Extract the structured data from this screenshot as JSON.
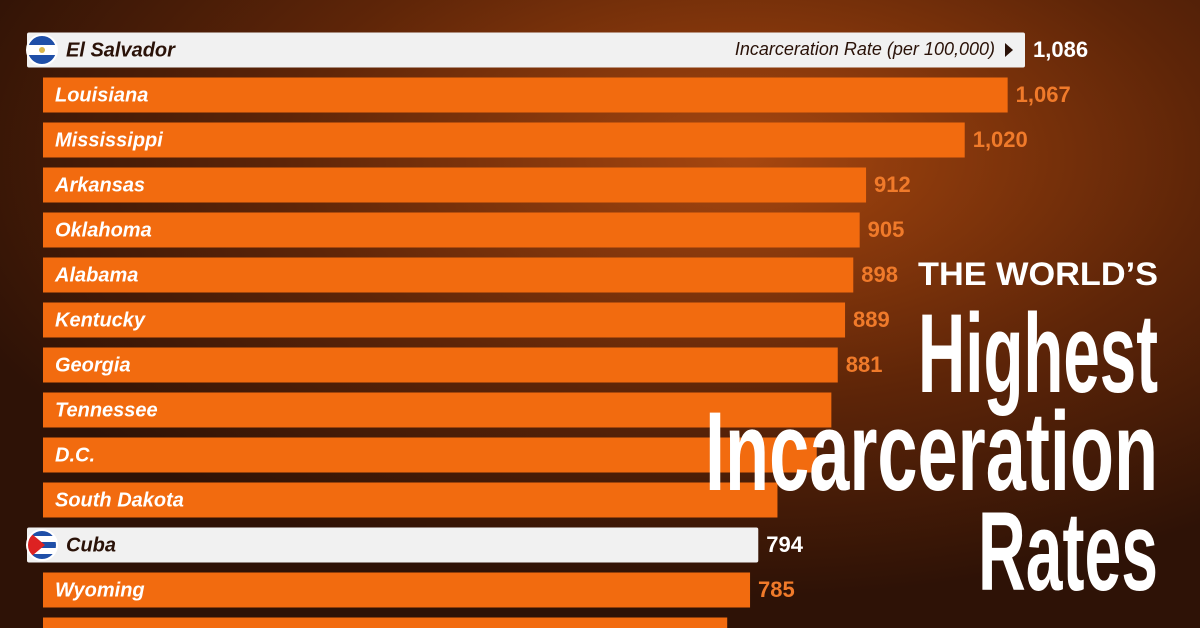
{
  "chart_data": {
    "type": "bar",
    "orientation": "horizontal",
    "title_lines": [
      "THE WORLD’S",
      "Highest",
      "Incarceration",
      "Rates"
    ],
    "x_label": "Incarceration Rate (per 100,000)",
    "categories": [
      "El Salvador",
      "Louisiana",
      "Mississippi",
      "Arkansas",
      "Oklahoma",
      "Alabama",
      "Kentucky",
      "Georgia",
      "Tennessee",
      "D.C.",
      "South Dakota",
      "Cuba",
      "Wyoming",
      null
    ],
    "values": [
      1086,
      1067,
      1020,
      912,
      905,
      898,
      889,
      881,
      874,
      858,
      815,
      794,
      785,
      760
    ],
    "value_labels": [
      "1,086",
      "1,067",
      "1,020",
      null,
      null,
      null,
      null,
      null,
      null,
      null,
      null,
      null,
      null,
      null
    ],
    "colors": [
      "#f1f1f1",
      "#f26b0f",
      "#f26b0f",
      "#f26b0f",
      "#f26b0f",
      "#f26b0f",
      "#f26b0f",
      "#f26b0f",
      "#f26b0f",
      "#f26b0f",
      "#f26b0f",
      "#f1f1f1",
      "#f26b0f",
      "#f26b0f"
    ]
  }
}
